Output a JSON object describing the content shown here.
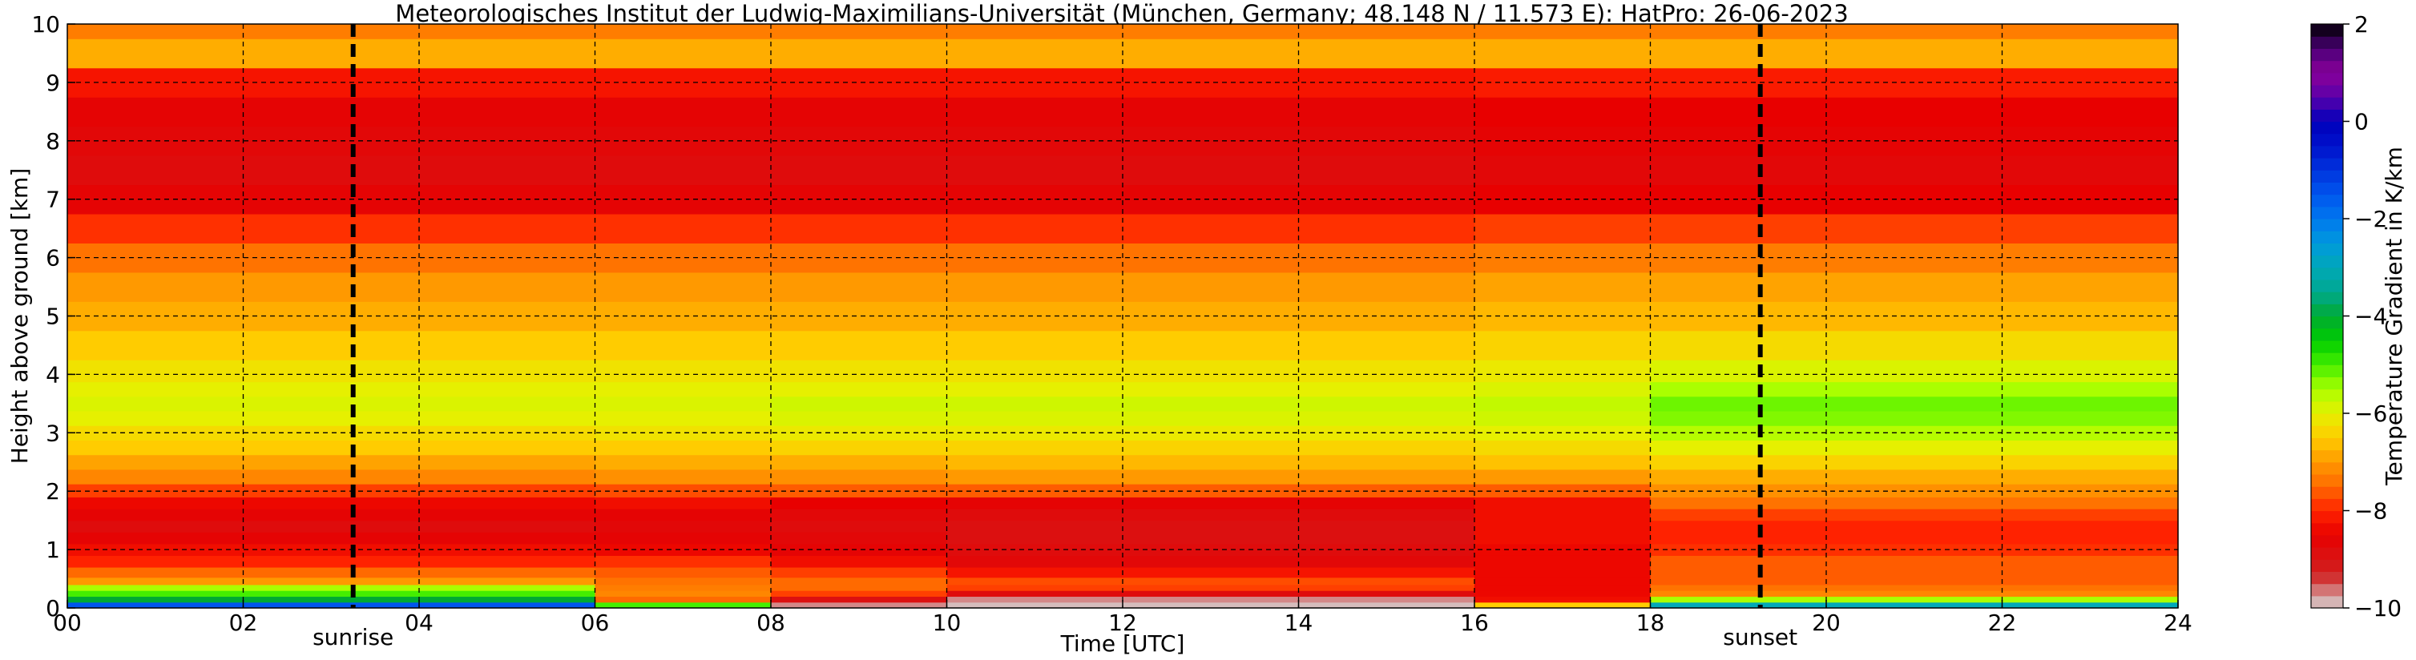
{
  "chart_data": {
    "type": "heatmap",
    "title": "Meteorologisches Institut der Ludwig-Maximilians-Universität (München, Germany; 48.148 N / 11.573 E):    HatPro: 26-06-2023",
    "xlabel": "Time [UTC]",
    "ylabel": "Height above ground [km]",
    "xlim": [
      0,
      24
    ],
    "ylim": [
      0,
      10
    ],
    "x_ticks": [
      0,
      2,
      4,
      6,
      8,
      10,
      12,
      14,
      16,
      18,
      20,
      22,
      24
    ],
    "x_tick_labels": [
      "00",
      "02",
      "04",
      "06",
      "08",
      "10",
      "12",
      "14",
      "16",
      "18",
      "20",
      "22",
      "24"
    ],
    "y_ticks": [
      0,
      1,
      2,
      3,
      4,
      5,
      6,
      7,
      8,
      9,
      10
    ],
    "y_tick_labels": [
      "0",
      "1",
      "2",
      "3",
      "4",
      "5",
      "6",
      "7",
      "8",
      "9",
      "10"
    ],
    "grid": true,
    "events": [
      {
        "label": "sunrise",
        "time": 3.25
      },
      {
        "label": "sunset",
        "time": 19.25
      }
    ],
    "colorbar": {
      "label": "Temperature Gradient in K/km",
      "range": [
        -10,
        2
      ],
      "ticks": [
        2,
        0,
        -2,
        -4,
        -6,
        -8,
        -10
      ],
      "tick_labels": [
        "2",
        "0",
        "−2",
        "−4",
        "−6",
        "−8",
        "−10"
      ],
      "colorscale": [
        [
          -10,
          "#d6d6d6"
        ],
        [
          -9.3,
          "#d02020"
        ],
        [
          -8.5,
          "#e80000"
        ],
        [
          -8,
          "#ff2200"
        ],
        [
          -7.5,
          "#ff6a00"
        ],
        [
          -7,
          "#ff9900"
        ],
        [
          -6.5,
          "#ffcc00"
        ],
        [
          -6,
          "#e6f000"
        ],
        [
          -5.5,
          "#aaff00"
        ],
        [
          -5,
          "#44ee00"
        ],
        [
          -4.5,
          "#00cc00"
        ],
        [
          -4,
          "#00aa33"
        ],
        [
          -3.5,
          "#00a890"
        ],
        [
          -3,
          "#00a8b8"
        ],
        [
          -2.5,
          "#0099dd"
        ],
        [
          -2,
          "#0077ee"
        ],
        [
          -1.5,
          "#0055ee"
        ],
        [
          -1,
          "#0033dd"
        ],
        [
          -0.5,
          "#0011cc"
        ],
        [
          0,
          "#0000bb"
        ],
        [
          0.5,
          "#5a00aa"
        ],
        [
          1,
          "#8a0099"
        ],
        [
          1.5,
          "#4a0077"
        ],
        [
          2,
          "#000000"
        ]
      ]
    },
    "height_levels_km": [
      0.05,
      0.15,
      0.25,
      0.35,
      0.45,
      0.6,
      0.8,
      1.0,
      1.2,
      1.4,
      1.6,
      1.8,
      2.0,
      2.25,
      2.5,
      2.75,
      3.0,
      3.25,
      3.5,
      3.75,
      4.0,
      4.5,
      5.0,
      5.5,
      6.0,
      6.5,
      7.0,
      7.5,
      8.0,
      8.5,
      9.0,
      9.5,
      10.0
    ],
    "time_blocks_utc": [
      {
        "t": [
          0,
          6
        ],
        "gradient": [
          -1.5,
          -4,
          -5,
          -5.5,
          -7,
          -7.5,
          -8,
          -8.3,
          -8.6,
          -8.8,
          -8.6,
          -8.4,
          -7.8,
          -7.2,
          -6.9,
          -6.5,
          -6.3,
          -6.0,
          -5.9,
          -6.0,
          -6.2,
          -6.5,
          -6.8,
          -7.0,
          -7.4,
          -7.9,
          -8.6,
          -8.8,
          -8.7,
          -8.6,
          -8.2,
          -6.8,
          -7.3
        ]
      },
      {
        "t": [
          6,
          8
        ],
        "gradient": [
          -5,
          -7.5,
          -7.2,
          -7.3,
          -7.4,
          -7.6,
          -7.9,
          -8.4,
          -8.6,
          -8.7,
          -8.6,
          -8.3,
          -7.7,
          -7.1,
          -6.8,
          -6.5,
          -6.2,
          -6.0,
          -5.9,
          -6.0,
          -6.2,
          -6.5,
          -6.8,
          -7.0,
          -7.4,
          -7.9,
          -8.6,
          -8.8,
          -8.7,
          -8.6,
          -8.2,
          -6.8,
          -7.3
        ]
      },
      {
        "t": [
          8,
          10
        ],
        "gradient": [
          -9.7,
          -8.9,
          -7.8,
          -7.5,
          -7.5,
          -7.8,
          -8.3,
          -8.6,
          -8.7,
          -8.8,
          -8.7,
          -8.5,
          -7.6,
          -7.1,
          -6.8,
          -6.4,
          -6.1,
          -5.9,
          -5.8,
          -6.0,
          -6.2,
          -6.5,
          -6.8,
          -7.0,
          -7.4,
          -7.9,
          -8.6,
          -8.8,
          -8.7,
          -8.6,
          -8.2,
          -6.8,
          -7.3
        ]
      },
      {
        "t": [
          10,
          16
        ],
        "gradient": [
          -9.9,
          -9.7,
          -8.8,
          -7.8,
          -7.7,
          -8.2,
          -8.7,
          -8.8,
          -8.9,
          -8.9,
          -8.8,
          -8.6,
          -7.6,
          -7.0,
          -6.7,
          -6.4,
          -6.1,
          -5.9,
          -5.8,
          -6.0,
          -6.2,
          -6.5,
          -6.8,
          -7.0,
          -7.4,
          -7.9,
          -8.6,
          -8.8,
          -8.7,
          -8.6,
          -8.2,
          -6.8,
          -7.3
        ]
      },
      {
        "t": [
          16,
          18
        ],
        "gradient": [
          -6.5,
          -8.3,
          -8.4,
          -8.4,
          -8.4,
          -8.4,
          -8.4,
          -8.4,
          -8.3,
          -8.3,
          -8.3,
          -8.3,
          -7.6,
          -7.0,
          -6.6,
          -6.3,
          -6.0,
          -5.8,
          -5.7,
          -5.9,
          -6.1,
          -6.4,
          -6.7,
          -6.9,
          -7.3,
          -7.8,
          -8.5,
          -8.7,
          -8.6,
          -8.5,
          -8.1,
          -6.8,
          -7.3
        ]
      },
      {
        "t": [
          18,
          24
        ],
        "gradient": [
          -3,
          -5.5,
          -7.2,
          -7.4,
          -7.6,
          -7.6,
          -7.6,
          -7.9,
          -8.0,
          -8.0,
          -7.8,
          -7.4,
          -7.1,
          -6.8,
          -6.4,
          -6.0,
          -5.6,
          -5.3,
          -5.2,
          -5.5,
          -5.9,
          -6.3,
          -6.7,
          -6.9,
          -7.3,
          -7.8,
          -8.5,
          -8.7,
          -8.6,
          -8.5,
          -8.1,
          -6.8,
          -7.3
        ]
      }
    ]
  }
}
